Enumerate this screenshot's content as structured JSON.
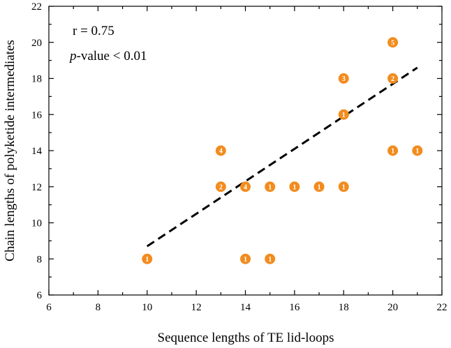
{
  "chart_data": {
    "type": "scatter",
    "xlabel": "Sequence lengths of TE lid-loops",
    "ylabel": "Chain lengths of polyketide intermediates",
    "xlim": [
      6,
      22
    ],
    "ylim": [
      6,
      22
    ],
    "x_ticks": [
      "6",
      "8",
      "10",
      "12",
      "14",
      "16",
      "18",
      "20",
      "22"
    ],
    "y_ticks": [
      "6",
      "8",
      "10",
      "12",
      "14",
      "16",
      "18",
      "20",
      "22"
    ],
    "annotations": {
      "r_text": "r = 0.75",
      "p_italic": "p",
      "p_rest": "-value < 0.01"
    },
    "marker_color": "#F28C1E",
    "trend_color": "#000000",
    "points": [
      {
        "x": 10,
        "y": 8,
        "count": "1"
      },
      {
        "x": 13,
        "y": 14,
        "count": "4"
      },
      {
        "x": 13,
        "y": 12,
        "count": "2"
      },
      {
        "x": 14,
        "y": 12,
        "count": "4"
      },
      {
        "x": 14,
        "y": 8,
        "count": "1"
      },
      {
        "x": 15,
        "y": 12,
        "count": "1"
      },
      {
        "x": 15,
        "y": 8,
        "count": "1"
      },
      {
        "x": 16,
        "y": 12,
        "count": "1"
      },
      {
        "x": 17,
        "y": 12,
        "count": "1"
      },
      {
        "x": 18,
        "y": 18,
        "count": "3"
      },
      {
        "x": 18,
        "y": 16,
        "count": "1"
      },
      {
        "x": 18,
        "y": 12,
        "count": "1"
      },
      {
        "x": 20,
        "y": 20,
        "count": "5"
      },
      {
        "x": 20,
        "y": 18,
        "count": "2"
      },
      {
        "x": 20,
        "y": 14,
        "count": "1"
      },
      {
        "x": 21,
        "y": 14,
        "count": "1"
      }
    ],
    "trendline": [
      {
        "x": 10,
        "y": 8.7
      },
      {
        "x": 21,
        "y": 18.6
      }
    ]
  }
}
